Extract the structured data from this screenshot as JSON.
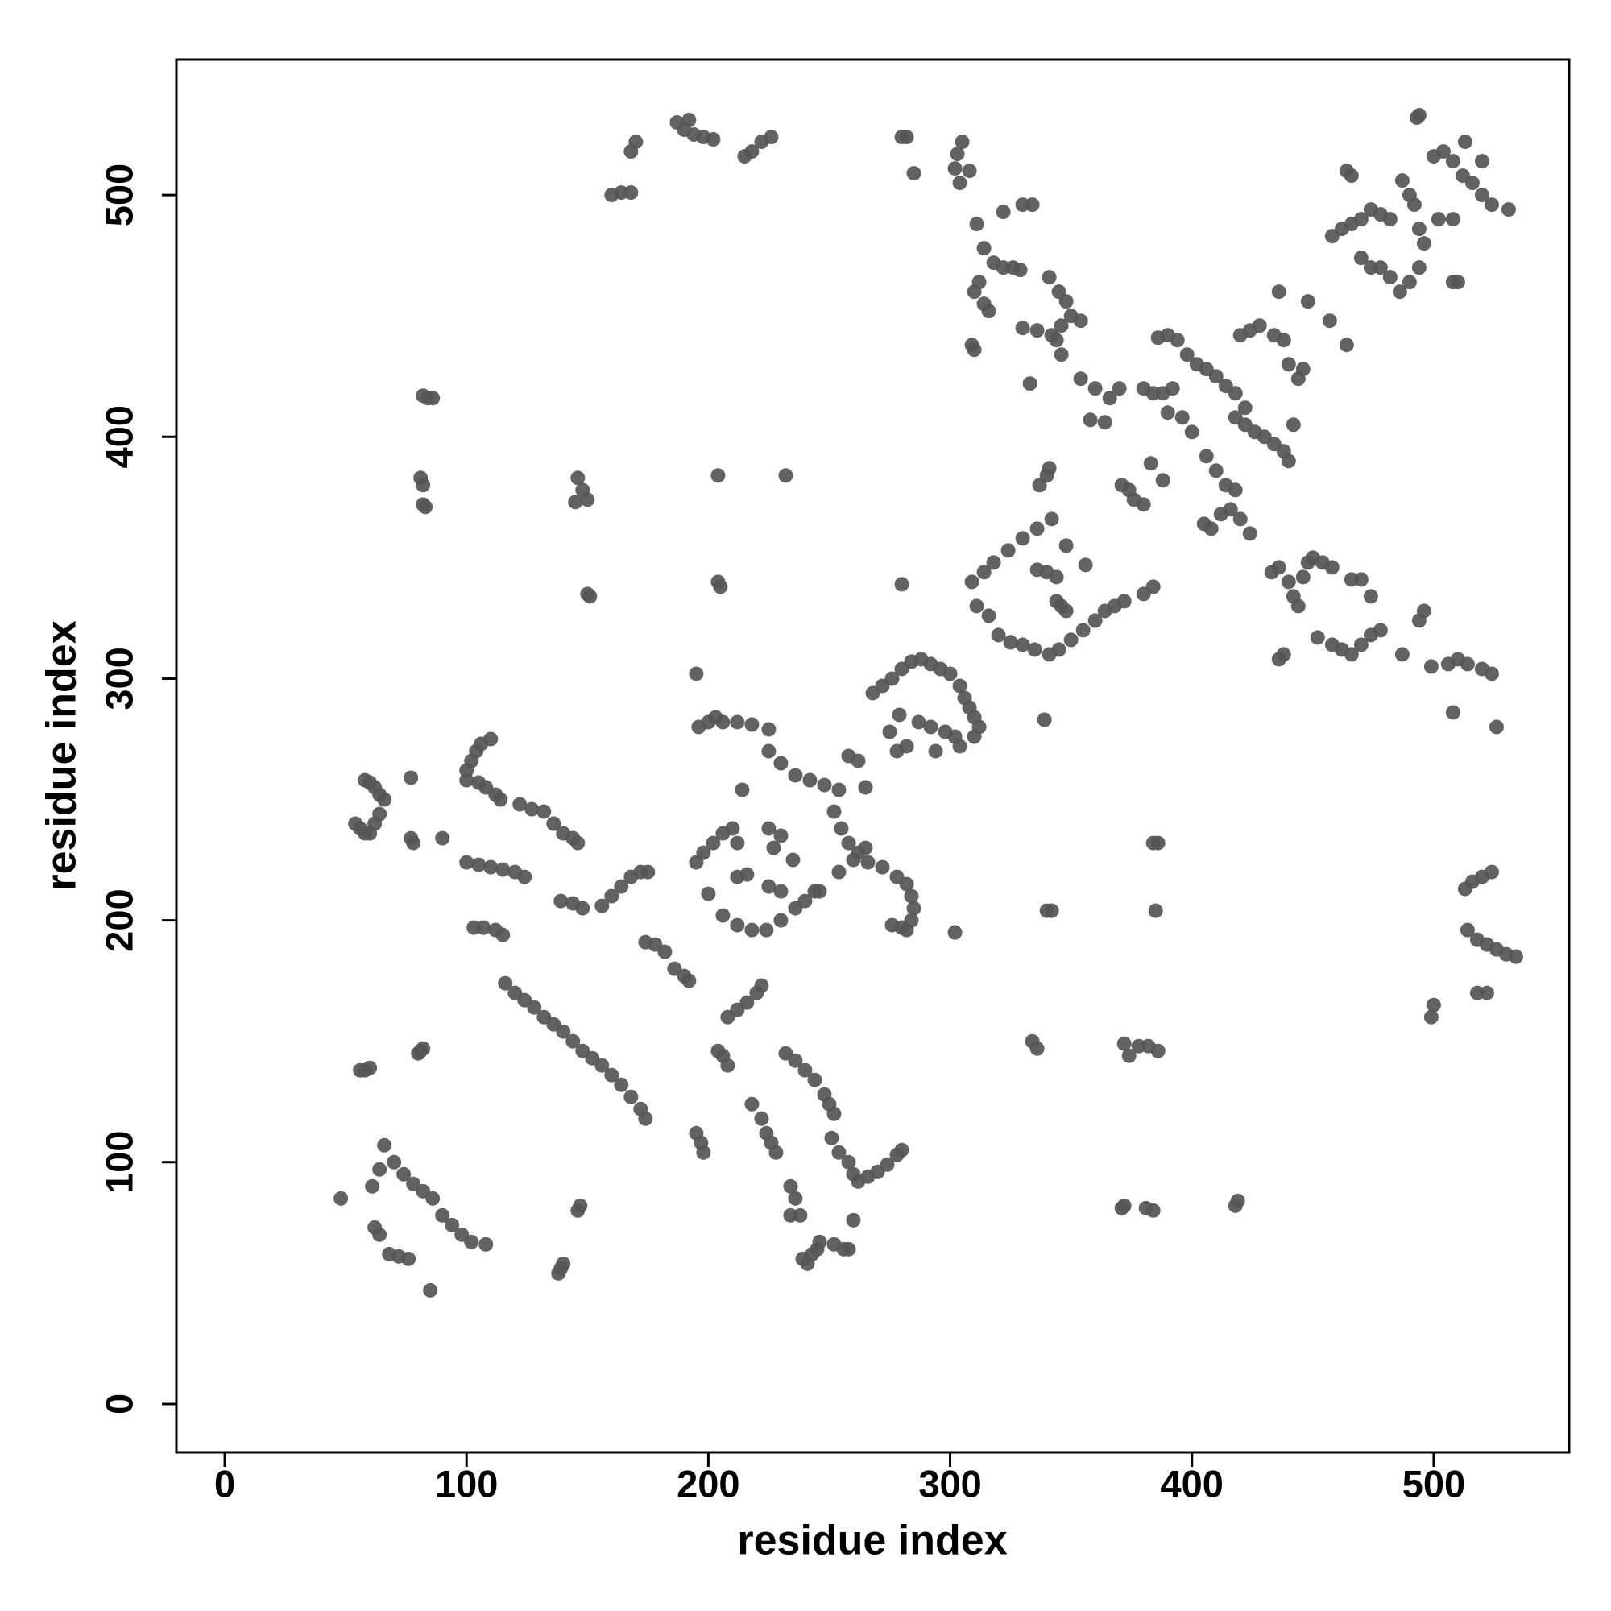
{
  "chart_data": {
    "type": "scatter",
    "x_label": "residue index",
    "y_label": "residue index",
    "xlim": [
      -20,
      556
    ],
    "ylim": [
      -20,
      556
    ],
    "xticks": [
      0,
      100,
      200,
      300,
      400,
      500
    ],
    "yticks": [
      0,
      100,
      200,
      300,
      400,
      500
    ],
    "color": "#555555",
    "x": [
      48,
      66,
      70,
      74,
      78,
      82,
      86,
      90,
      94,
      98,
      102,
      108,
      62,
      64,
      68,
      72,
      76,
      61,
      64,
      85,
      56,
      58,
      60,
      81,
      82,
      80,
      146,
      147,
      139,
      140,
      138,
      82,
      84,
      86,
      81,
      82,
      82,
      83,
      146,
      148,
      150,
      145,
      150,
      151,
      116,
      120,
      124,
      128,
      132,
      136,
      140,
      144,
      148,
      152,
      156,
      160,
      164,
      168,
      172,
      174,
      100,
      105,
      110,
      115,
      120,
      124,
      103,
      107,
      112,
      115,
      100,
      105,
      108,
      112,
      114,
      100,
      102,
      104,
      106,
      110,
      58,
      60,
      62,
      64,
      66,
      54,
      56,
      58,
      60,
      62,
      64,
      77,
      77,
      78,
      90,
      122,
      127,
      132,
      136,
      140,
      144,
      146,
      139,
      144,
      148,
      156,
      160,
      164,
      168,
      172,
      175,
      174,
      178,
      182,
      186,
      190,
      192,
      208,
      212,
      216,
      220,
      222,
      204,
      206,
      208,
      195,
      197,
      198,
      218,
      222,
      224,
      226,
      228,
      232,
      236,
      240,
      244,
      248,
      250,
      252,
      251,
      254,
      258,
      260,
      262,
      266,
      270,
      274,
      278,
      280,
      234,
      236,
      234,
      238,
      246,
      252,
      256,
      258,
      239,
      241,
      243,
      245,
      260,
      195,
      204,
      205,
      204,
      232,
      196,
      200,
      203,
      206,
      212,
      218,
      225,
      225,
      230,
      236,
      242,
      248,
      254,
      214,
      195,
      198,
      202,
      206,
      210,
      212,
      200,
      206,
      212,
      218,
      224,
      230,
      236,
      240,
      244,
      246,
      225,
      230,
      227,
      235,
      212,
      216,
      225,
      230,
      252,
      255,
      258,
      262,
      266,
      272,
      278,
      282,
      284,
      285,
      276,
      280,
      282,
      284,
      254,
      260,
      265,
      265,
      258,
      262,
      268,
      272,
      276,
      280,
      284,
      288,
      292,
      296,
      300,
      304,
      306,
      308,
      310,
      312,
      310,
      287,
      292,
      298,
      302,
      304,
      279,
      278,
      282,
      275,
      294,
      309,
      314,
      318,
      324,
      330,
      336,
      342,
      311,
      316,
      320,
      325,
      330,
      335,
      336,
      340,
      344,
      341,
      345,
      350,
      355,
      360,
      364,
      368,
      372,
      344,
      346,
      348,
      337,
      340,
      341,
      348,
      356,
      339,
      333,
      302,
      303,
      305,
      308,
      304,
      311,
      314,
      318,
      322,
      326,
      312,
      310,
      314,
      309,
      310,
      316,
      322,
      330,
      334,
      330,
      336,
      342,
      346,
      350,
      354,
      341,
      345,
      348,
      344,
      346,
      329,
      280,
      282,
      285,
      170,
      168,
      160,
      164,
      168,
      187,
      190,
      194,
      198,
      202,
      192,
      215,
      218,
      222,
      226,
      354,
      360,
      366,
      358,
      364,
      370,
      371,
      374,
      376,
      380,
      383,
      388,
      380,
      384,
      380,
      384,
      388,
      392,
      386,
      390,
      394,
      398,
      402,
      406,
      410,
      414,
      418,
      422,
      390,
      396,
      400,
      406,
      410,
      414,
      418,
      405,
      408,
      412,
      416,
      420,
      424,
      418,
      422,
      426,
      430,
      434,
      438,
      440,
      420,
      424,
      428,
      434,
      438,
      444,
      446,
      440,
      442,
      436,
      448,
      457,
      464,
      433,
      436,
      440,
      442,
      444,
      446,
      448,
      450,
      454,
      458,
      438,
      436,
      452,
      458,
      462,
      466,
      470,
      474,
      478,
      466,
      470,
      474,
      487,
      494,
      496,
      499,
      506,
      510,
      514,
      520,
      524,
      526,
      508,
      458,
      462,
      466,
      470,
      474,
      478,
      482,
      466,
      464,
      470,
      474,
      478,
      482,
      486,
      490,
      494,
      487,
      490,
      492,
      494,
      496,
      494,
      493,
      500,
      504,
      508,
      512,
      516,
      520,
      524,
      502,
      508,
      508,
      510,
      513,
      520,
      531,
      513,
      516,
      520,
      524,
      514,
      518,
      522,
      526,
      530,
      534,
      500,
      499,
      518,
      522,
      340,
      342,
      384,
      386,
      385,
      302,
      334,
      336,
      372,
      374,
      378,
      382,
      386,
      371,
      372,
      381,
      384,
      418,
      419,
      280
    ],
    "y": [
      85,
      107,
      100,
      95,
      91,
      88,
      85,
      78,
      74,
      70,
      67,
      66,
      73,
      70,
      62,
      61,
      60,
      90,
      97,
      47,
      138,
      138,
      139,
      146,
      147,
      145,
      80,
      82,
      56,
      58,
      54,
      417,
      416,
      416,
      383,
      380,
      372,
      371,
      383,
      378,
      374,
      373,
      335,
      334,
      174,
      170,
      167,
      164,
      160,
      157,
      154,
      150,
      146,
      143,
      140,
      136,
      132,
      127,
      122,
      118,
      224,
      223,
      222,
      221,
      220,
      218,
      197,
      197,
      196,
      194,
      258,
      257,
      255,
      252,
      250,
      262,
      266,
      270,
      273,
      275,
      258,
      257,
      255,
      252,
      250,
      240,
      238,
      236,
      236,
      240,
      244,
      259,
      234,
      232,
      234,
      248,
      246,
      245,
      240,
      236,
      234,
      232,
      208,
      207,
      205,
      206,
      210,
      214,
      218,
      220,
      220,
      191,
      190,
      187,
      180,
      177,
      175,
      160,
      163,
      166,
      170,
      173,
      146,
      144,
      140,
      112,
      108,
      104,
      124,
      118,
      112,
      108,
      104,
      145,
      142,
      138,
      134,
      128,
      124,
      120,
      110,
      104,
      100,
      95,
      92,
      94,
      96,
      99,
      103,
      105,
      90,
      85,
      78,
      78,
      67,
      66,
      64,
      64,
      60,
      58,
      62,
      64,
      76,
      302,
      340,
      338,
      384,
      384,
      280,
      282,
      284,
      282,
      282,
      281,
      279,
      270,
      265,
      260,
      258,
      256,
      254,
      254,
      224,
      228,
      232,
      236,
      238,
      232,
      211,
      202,
      198,
      196,
      196,
      200,
      205,
      208,
      212,
      212,
      238,
      235,
      230,
      225,
      218,
      219,
      214,
      212,
      245,
      238,
      232,
      228,
      224,
      222,
      218,
      215,
      210,
      205,
      198,
      197,
      196,
      200,
      220,
      225,
      230,
      255,
      268,
      266,
      294,
      297,
      300,
      304,
      307,
      308,
      306,
      304,
      302,
      297,
      292,
      288,
      284,
      280,
      276,
      282,
      280,
      278,
      276,
      272,
      285,
      270,
      272,
      278,
      270,
      340,
      344,
      348,
      353,
      358,
      362,
      366,
      330,
      326,
      318,
      315,
      314,
      312,
      345,
      344,
      342,
      310,
      312,
      316,
      320,
      324,
      328,
      330,
      332,
      332,
      330,
      328,
      380,
      384,
      387,
      355,
      347,
      283,
      422,
      511,
      517,
      522,
      510,
      505,
      488,
      478,
      472,
      470,
      470,
      464,
      460,
      455,
      438,
      436,
      452,
      493,
      496,
      496,
      445,
      444,
      442,
      446,
      450,
      448,
      466,
      460,
      456,
      440,
      434,
      469,
      524,
      524,
      509,
      522,
      518,
      500,
      501,
      501,
      530,
      527,
      525,
      524,
      523,
      531,
      516,
      518,
      522,
      524,
      424,
      420,
      416,
      407,
      406,
      420,
      380,
      378,
      374,
      372,
      389,
      382,
      335,
      338,
      420,
      418,
      418,
      420,
      441,
      442,
      440,
      434,
      430,
      428,
      425,
      421,
      418,
      412,
      410,
      408,
      402,
      392,
      386,
      380,
      378,
      364,
      362,
      368,
      370,
      366,
      360,
      408,
      405,
      402,
      400,
      397,
      394,
      390,
      442,
      444,
      446,
      442,
      440,
      424,
      428,
      430,
      405,
      460,
      456,
      448,
      438,
      344,
      346,
      340,
      334,
      330,
      342,
      348,
      350,
      348,
      346,
      310,
      308,
      317,
      314,
      312,
      310,
      314,
      318,
      320,
      341,
      341,
      334,
      310,
      324,
      328,
      305,
      306,
      308,
      306,
      304,
      302,
      280,
      286,
      483,
      486,
      488,
      490,
      494,
      492,
      490,
      508,
      510,
      474,
      470,
      470,
      466,
      460,
      464,
      470,
      506,
      500,
      496,
      486,
      480,
      533,
      532,
      516,
      518,
      514,
      508,
      505,
      500,
      496,
      490,
      490,
      464,
      464,
      522,
      514,
      494,
      213,
      216,
      218,
      220,
      196,
      192,
      190,
      188,
      186,
      185,
      165,
      160,
      170,
      170,
      204,
      204,
      232,
      232,
      204,
      195,
      150,
      147,
      149,
      144,
      148,
      148,
      146,
      81,
      82,
      81,
      80,
      82,
      84,
      339
    ]
  }
}
